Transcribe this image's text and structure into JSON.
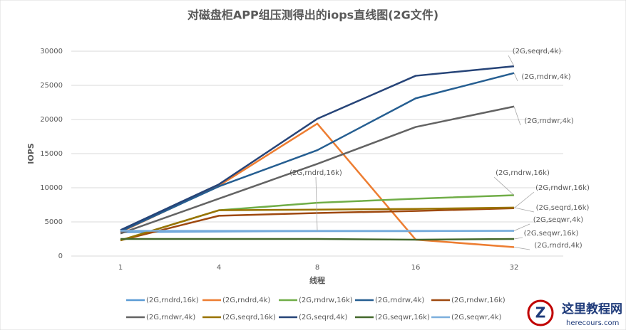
{
  "chart_data": {
    "type": "line",
    "title": "对磁盘柜APP组压测得出的iops直线图(2G文件)",
    "x_label": "线程",
    "y_label": "IOPS",
    "categories": [
      "1",
      "4",
      "8",
      "16",
      "32"
    ],
    "ylim": [
      0,
      30000
    ],
    "yticks": [
      0,
      5000,
      10000,
      15000,
      20000,
      25000,
      30000
    ],
    "grid": true,
    "series": [
      {
        "name": "(2G,rndrd,16k)",
        "color": "#5b9bd5",
        "values": [
          3500,
          3600,
          3650,
          3650,
          3700
        ]
      },
      {
        "name": "(2G,rndrd,4k)",
        "color": "#ed7d31",
        "values": [
          3500,
          10300,
          19400,
          2400,
          1300
        ]
      },
      {
        "name": "(2G,rndrw,16k)",
        "color": "#70ad47",
        "values": [
          2300,
          6700,
          7800,
          8400,
          8900
        ]
      },
      {
        "name": "(2G,rndrw,4k)",
        "color": "#255e91",
        "values": [
          3600,
          10200,
          15500,
          23100,
          26800
        ]
      },
      {
        "name": "(2G,rndwr,16k)",
        "color": "#9e480e",
        "values": [
          2300,
          5900,
          6300,
          6600,
          7000
        ]
      },
      {
        "name": "(2G,rndwr,4k)",
        "color": "#636363",
        "values": [
          3300,
          8400,
          13500,
          18900,
          21900
        ]
      },
      {
        "name": "(2G,seqrd,16k)",
        "color": "#997300",
        "values": [
          2300,
          6700,
          6800,
          6900,
          7100
        ]
      },
      {
        "name": "(2G,seqrd,4k)",
        "color": "#264478",
        "values": [
          3800,
          10500,
          20100,
          26400,
          27800
        ]
      },
      {
        "name": "(2G,seqwr,16k)",
        "color": "#43682b",
        "values": [
          2500,
          2500,
          2500,
          2400,
          2500
        ]
      },
      {
        "name": "(2G,seqwr,4k)",
        "color": "#7cafdd",
        "values": [
          3700,
          3700,
          3700,
          3700,
          3700
        ]
      }
    ]
  },
  "watermark": {
    "name": "这里教程网",
    "url": "herecours.com"
  }
}
